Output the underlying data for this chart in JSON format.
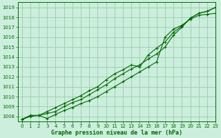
{
  "title": "Graphe pression niveau de la mer (hPa)",
  "bg_color": "#cceedd",
  "grid_color": "#99ccaa",
  "line_color": "#006600",
  "xlim": [
    -0.5,
    23
  ],
  "ylim": [
    1007.5,
    1019.5
  ],
  "yticks": [
    1008,
    1009,
    1010,
    1011,
    1012,
    1013,
    1014,
    1015,
    1016,
    1017,
    1018,
    1019
  ],
  "xticks": [
    0,
    1,
    2,
    3,
    4,
    5,
    6,
    7,
    8,
    9,
    10,
    11,
    12,
    13,
    14,
    15,
    16,
    17,
    18,
    19,
    20,
    21,
    22,
    23
  ],
  "series": [
    [
      1007.7,
      1008.0,
      1008.1,
      1007.8,
      1008.2,
      1008.6,
      1008.9,
      1009.3,
      1009.6,
      1010.0,
      1010.5,
      1011.0,
      1011.5,
      1012.0,
      1012.5,
      1013.0,
      1013.5,
      1016.0,
      1016.8,
      1017.2,
      1017.8,
      1018.2,
      1018.3,
      1018.4
    ],
    [
      1007.7,
      1008.1,
      1008.1,
      1008.3,
      1008.5,
      1009.0,
      1009.4,
      1009.7,
      1010.2,
      1010.7,
      1011.2,
      1011.8,
      1012.3,
      1012.8,
      1013.2,
      1013.8,
      1014.3,
      1015.0,
      1016.2,
      1017.0,
      1017.9,
      1018.4,
      1018.6,
      1019.0
    ],
    [
      1007.7,
      1008.1,
      1008.1,
      1008.5,
      1008.9,
      1009.3,
      1009.7,
      1010.1,
      1010.6,
      1011.0,
      1011.7,
      1012.3,
      1012.7,
      1013.2,
      1013.0,
      1014.2,
      1014.9,
      1015.5,
      1016.5,
      1017.1,
      1017.9,
      1018.4,
      1018.6,
      1019.0
    ]
  ],
  "ylabel_fontsize": 5.5,
  "xlabel_fontsize": 6.0,
  "tick_fontsize": 5.0,
  "line_width": 0.8,
  "marker_size": 3.5
}
